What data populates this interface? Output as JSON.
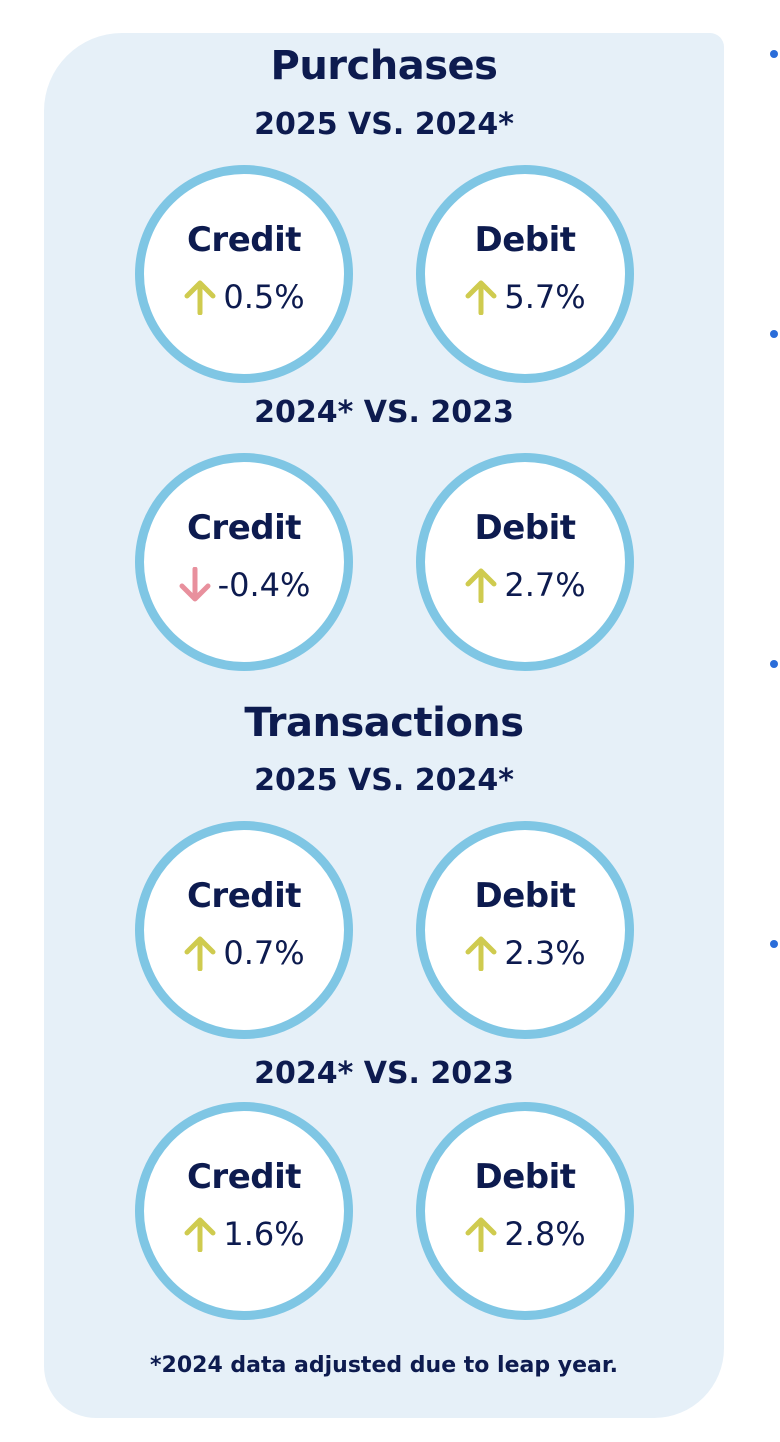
{
  "purchases": {
    "title": "Purchases",
    "period1": {
      "label": "2025 VS. 2024*",
      "credit": {
        "label": "Credit",
        "value": "0.5%",
        "direction": "up"
      },
      "debit": {
        "label": "Debit",
        "value": "5.7%",
        "direction": "up"
      }
    },
    "period2": {
      "label": "2024* VS. 2023",
      "credit": {
        "label": "Credit",
        "value": "-0.4%",
        "direction": "down"
      },
      "debit": {
        "label": "Debit",
        "value": "2.7%",
        "direction": "up"
      }
    }
  },
  "transactions": {
    "title": "Transactions",
    "period1": {
      "label": "2025 VS. 2024*",
      "credit": {
        "label": "Credit",
        "value": "0.7%",
        "direction": "up"
      },
      "debit": {
        "label": "Debit",
        "value": "2.3%",
        "direction": "up"
      }
    },
    "period2": {
      "label": "2024* VS. 2023",
      "credit": {
        "label": "Credit",
        "value": "1.6%",
        "direction": "up"
      },
      "debit": {
        "label": "Debit",
        "value": "2.8%",
        "direction": "up"
      }
    }
  },
  "footnote": "*2024 data adjusted due to leap year.",
  "colors": {
    "panel_bg": "#e6f0f8",
    "circle_border": "#7fc6e4",
    "text": "#0d1b4f",
    "arrow_up": "#cfcb4f",
    "arrow_down": "#e8909d",
    "bullet": "#2a6dd9"
  },
  "icons": {
    "up": "arrow-up-icon",
    "down": "arrow-down-icon"
  }
}
